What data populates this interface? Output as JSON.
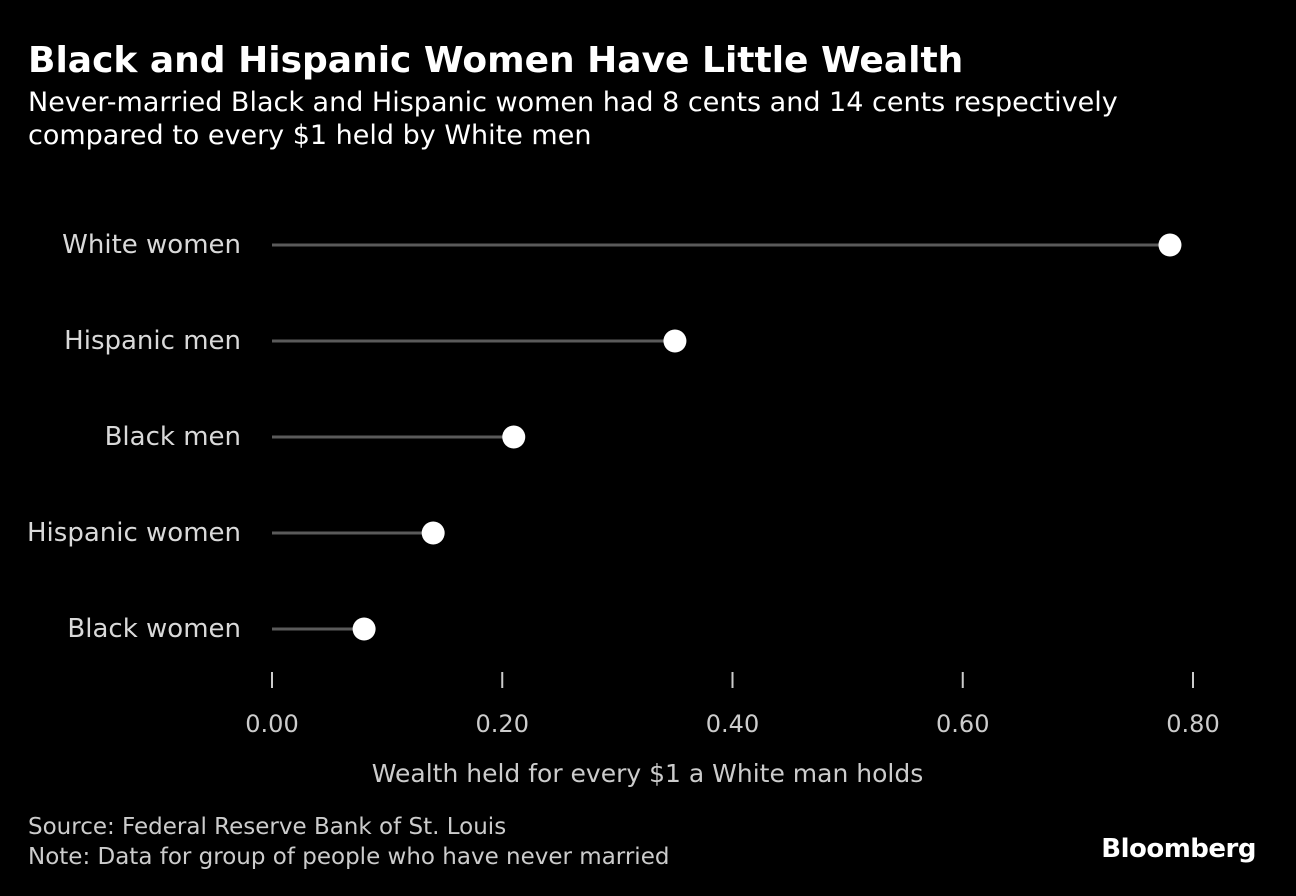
{
  "header": {
    "title": "Black and Hispanic Women Have Little Wealth",
    "subtitle": "Never-married Black and Hispanic women had 8 cents and 14 cents respectively compared to every $1 held by White men"
  },
  "chart_data": {
    "type": "dot",
    "title": "Black and Hispanic Women Have Little Wealth",
    "categories": [
      "White women",
      "Hispanic men",
      "Black men",
      "Hispanic women",
      "Black women"
    ],
    "values": [
      0.78,
      0.35,
      0.21,
      0.14,
      0.08
    ],
    "xlabel": "Wealth held for every $1 a White man holds",
    "ylabel": "",
    "xlim": [
      0,
      0.8
    ],
    "xticks": [
      0,
      0.2,
      0.4,
      0.6,
      0.8
    ],
    "xtick_labels": [
      "0.00",
      "0.20",
      "0.40",
      "0.60",
      "0.80"
    ],
    "grid": false,
    "colors": {
      "background": "#000000",
      "stem": "#5a5a5a",
      "dot": "#ffffff",
      "label": "#d9d9d9",
      "tick": "#cccccc"
    }
  },
  "footer": {
    "source": "Source: Federal Reserve Bank of St. Louis",
    "note": "Note: Data for group of people who have never married",
    "brand": "Bloomberg"
  }
}
